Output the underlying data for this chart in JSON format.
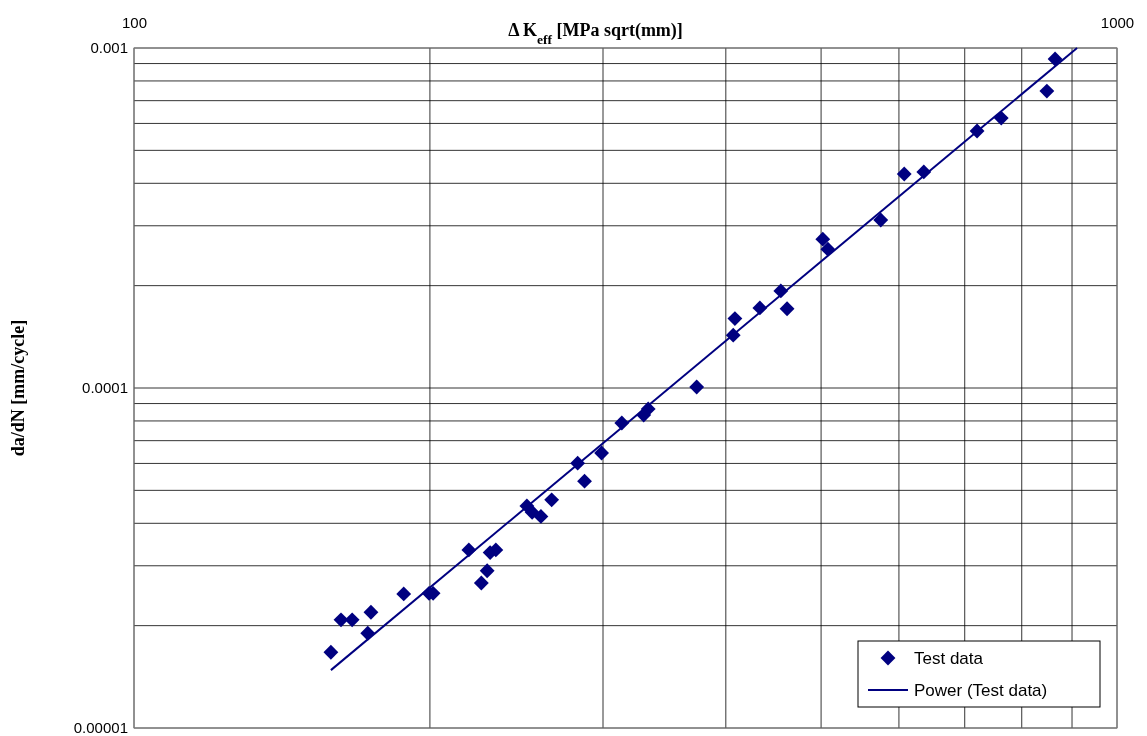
{
  "chart_data": {
    "type": "scatter",
    "xlabel": "Δ K$_{eff}$   [MPa  sqrt(mm)]",
    "ylabel": "da/dN [mm/cycle]",
    "log": "xy",
    "grid": true,
    "legend": "bottom right",
    "xlim": [
      100,
      1000
    ],
    "xticks": [
      100,
      {
        "value": 200,
        "label": null
      },
      {
        "value": 300,
        "label": null
      },
      {
        "value": 400,
        "label": null
      },
      {
        "value": 500,
        "label": null
      },
      {
        "value": 600,
        "label": null
      },
      {
        "value": 700,
        "label": null
      },
      {
        "value": 800,
        "label": null
      },
      {
        "value": 900,
        "label": null
      },
      1000
    ],
    "ylim": [
      1e-05,
      0.001
    ],
    "yticks": [
      {
        "value": 1e-05,
        "label": "0.00001"
      },
      {
        "value": 2e-05,
        "label": null
      },
      {
        "value": 3e-05,
        "label": null
      },
      {
        "value": 4e-05,
        "label": null
      },
      {
        "value": 5e-05,
        "label": null
      },
      {
        "value": 6e-05,
        "label": null
      },
      {
        "value": 7e-05,
        "label": null
      },
      {
        "value": 8e-05,
        "label": null
      },
      {
        "value": 9e-05,
        "label": null
      },
      0.0001,
      {
        "value": 0.0002,
        "label": null
      },
      {
        "value": 0.0003,
        "label": null
      },
      {
        "value": 0.0004,
        "label": null
      },
      {
        "value": 0.0005,
        "label": null
      },
      {
        "value": 0.0006,
        "label": null
      },
      {
        "value": 0.0007,
        "label": null
      },
      {
        "value": 0.0008,
        "label": null
      },
      {
        "value": 0.0009,
        "label": null
      },
      0.001
    ],
    "series": [
      {
        "name": "Test data",
        "marker": "diamond",
        "color": "#000080",
        "x": [
          158.6,
          162.4,
          166.7,
          172.9,
          174.2,
          188.1,
          199.6,
          201.5,
          219.1,
          225.6,
          228.7,
          230.3,
          233.4,
          251,
          254.1,
          259.4,
          266,
          282.7,
          287.3,
          299,
          313.5,
          330,
          333.5,
          373.6,
          407,
          408.6,
          433.2,
          455,
          461.7,
          502,
          508,
          575,
          607.5,
          636,
          720.5,
          762.5,
          848.5,
          865
        ],
        "values": [
          1.67e-05,
          2.08e-05,
          2.08e-05,
          1.9e-05,
          2.19e-05,
          2.48e-05,
          2.49e-05,
          2.49e-05,
          3.34e-05,
          2.67e-05,
          2.9e-05,
          3.28e-05,
          3.34e-05,
          4.5e-05,
          4.31e-05,
          4.19e-05,
          4.69e-05,
          6.01e-05,
          5.32e-05,
          6.44e-05,
          7.89e-05,
          8.33e-05,
          8.68e-05,
          0.0001007,
          0.000143,
          0.00016,
          0.000172,
          0.000193,
          0.000171,
          0.000274,
          0.000256,
          0.000312,
          0.000426,
          0.000432,
          0.00057,
          0.000622,
          0.000747,
          0.000928
        ]
      },
      {
        "name": "Power (Test data)",
        "type": "line",
        "marker": "none",
        "color": "#000080",
        "line_style": "solid",
        "x": [
          158.6,
          910.7
        ],
        "values": [
          1.48e-05,
          0.001
        ]
      }
    ]
  }
}
